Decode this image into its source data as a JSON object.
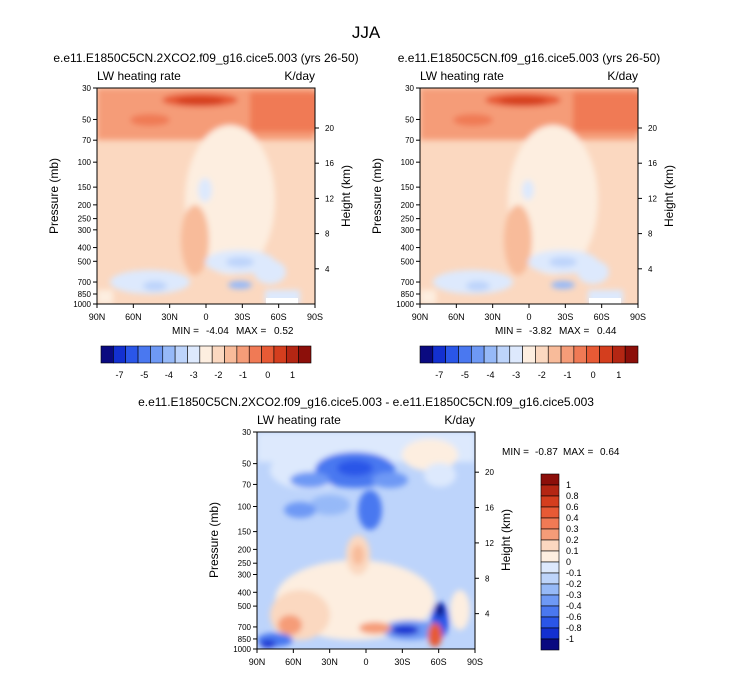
{
  "figure_title": "JJA",
  "panels": [
    {
      "title": "e.e11.E1850C5CN.2XCO2.f09_g16.cice5.003 (yrs 26-50)",
      "left_label": "LW heating rate",
      "right_label": "K/day",
      "min_label": "MIN =",
      "min_value": "-4.04",
      "max_label": "MAX =",
      "max_value": "0.52"
    },
    {
      "title": "e.e11.E1850C5CN.f09_g16.cice5.003 (yrs 26-50)",
      "left_label": "LW heating rate",
      "right_label": "K/day",
      "min_label": "MIN =",
      "min_value": "-3.82",
      "max_label": "MAX =",
      "max_value": "0.44"
    },
    {
      "title": "e.e11.E1850C5CN.2XCO2.f09_g16.cice5.003 - e.e11.E1850C5CN.f09_g16.cice5.003",
      "left_label": "LW heating rate",
      "right_label": "K/day",
      "min_label": "MIN =",
      "min_value": "-0.87",
      "max_label": "MAX =",
      "max_value": "0.64"
    }
  ],
  "axes": {
    "ylabel": "Pressure (mb)",
    "y2label": "Height (km)",
    "pressure_ticks": [
      "30",
      "50",
      "70",
      "100",
      "150",
      "200",
      "250",
      "300",
      "400",
      "500",
      "700",
      "850",
      "1000"
    ],
    "height_ticks": [
      "20",
      "16",
      "12",
      "8",
      "4"
    ],
    "lat_ticks": [
      "90N",
      "60N",
      "30N",
      "0",
      "30S",
      "60S",
      "90S"
    ]
  },
  "colorbar_abs": {
    "labels": [
      "-7",
      "-5",
      "-4",
      "-3",
      "-2",
      "-1",
      "0",
      "1"
    ],
    "colors": [
      "#0a0a80",
      "#1330d0",
      "#2a56e8",
      "#4a78f0",
      "#6e99f5",
      "#96b9f8",
      "#bdd4fb",
      "#dde9fd",
      "#fdeee0",
      "#fbd8c0",
      "#f8bb9a",
      "#f59c78",
      "#f07a55",
      "#e75a35",
      "#d43e1e",
      "#b42613",
      "#8c0f0a"
    ]
  },
  "colorbar_diff": {
    "labels": [
      "1",
      "0.8",
      "0.6",
      "0.4",
      "0.3",
      "0.2",
      "0.1",
      "0",
      "-0.1",
      "-0.2",
      "-0.3",
      "-0.4",
      "-0.6",
      "-0.8",
      "-1"
    ],
    "colors": [
      "#8c0f0a",
      "#b42613",
      "#d43e1e",
      "#e75a35",
      "#f07a55",
      "#f59c78",
      "#fbd8c0",
      "#fdeee0",
      "#dde9fd",
      "#bdd4fb",
      "#96b9f8",
      "#6e99f5",
      "#4a78f0",
      "#2a56e8",
      "#1330d0",
      "#0a0a80"
    ]
  },
  "chart_data": [
    {
      "type": "heatmap",
      "title": "e.e11.E1850C5CN.2XCO2.f09_g16.cice5.003 (yrs 26-50)",
      "xlabel": "",
      "ylabel": "Pressure (mb)",
      "y2label": "Height (km)",
      "x_ticks": [
        "90N",
        "60N",
        "30N",
        "0",
        "30S",
        "60S",
        "90S"
      ],
      "xlim": [
        90,
        -90
      ],
      "ylim": [
        1000,
        30
      ],
      "y_scale": "log",
      "units": "K/day",
      "min": -4.04,
      "max": 0.52
    },
    {
      "type": "heatmap",
      "title": "e.e11.E1850C5CN.f09_g16.cice5.003 (yrs 26-50)",
      "xlabel": "",
      "ylabel": "Pressure (mb)",
      "y2label": "Height (km)",
      "x_ticks": [
        "90N",
        "60N",
        "30N",
        "0",
        "30S",
        "60S",
        "90S"
      ],
      "xlim": [
        90,
        -90
      ],
      "ylim": [
        1000,
        30
      ],
      "y_scale": "log",
      "units": "K/day",
      "min": -3.82,
      "max": 0.44
    },
    {
      "type": "heatmap",
      "title": "e.e11.E1850C5CN.2XCO2.f09_g16.cice5.003 - e.e11.E1850C5CN.f09_g16.cice5.003",
      "xlabel": "",
      "ylabel": "Pressure (mb)",
      "y2label": "Height (km)",
      "x_ticks": [
        "90N",
        "60N",
        "30N",
        "0",
        "30S",
        "60S",
        "90S"
      ],
      "xlim": [
        90,
        -90
      ],
      "ylim": [
        1000,
        30
      ],
      "y_scale": "log",
      "units": "K/day",
      "min": -0.87,
      "max": 0.64
    }
  ]
}
